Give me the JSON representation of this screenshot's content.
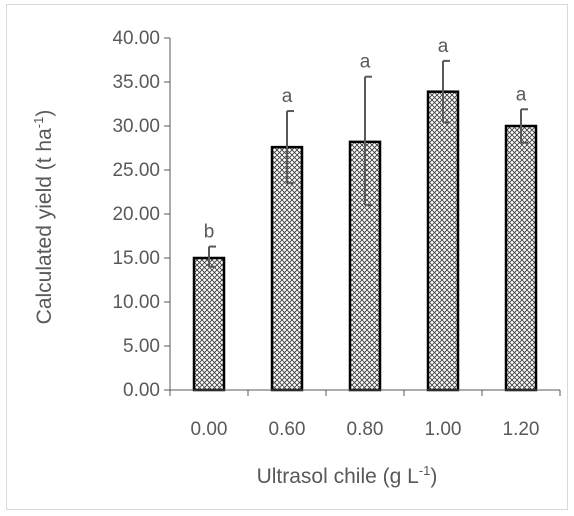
{
  "chart_data": {
    "type": "bar",
    "categories": [
      "0.00",
      "0.60",
      "0.80",
      "1.00",
      "1.20"
    ],
    "values": [
      15.0,
      27.6,
      28.2,
      33.9,
      30.0
    ],
    "error_upper": [
      16.3,
      31.7,
      35.6,
      37.4,
      31.9
    ],
    "error_lower": [
      14.0,
      23.5,
      21.0,
      30.4,
      28.1
    ],
    "significance_letters": [
      "b",
      "a",
      "a",
      "a",
      "a"
    ],
    "ylim": [
      0,
      40
    ],
    "y_ticks": [
      "0.00",
      "5.00",
      "10.00",
      "15.00",
      "20.00",
      "25.00",
      "30.00",
      "35.00",
      "40.00"
    ],
    "y_tick_values": [
      0,
      5,
      10,
      15,
      20,
      25,
      30,
      35,
      40
    ],
    "ylabel": {
      "main": "Calculated yield (t ha",
      "sup": "-1",
      "end": ")"
    },
    "xlabel": {
      "main": "Ultrasol chile (g L",
      "sup": "-1",
      "end": ")"
    },
    "grid": false,
    "legend": "none",
    "bar_fill": "crosshatch",
    "bar_edge_color": "#000000",
    "error_bar_color": "#595959",
    "axis_color": "#595959"
  }
}
